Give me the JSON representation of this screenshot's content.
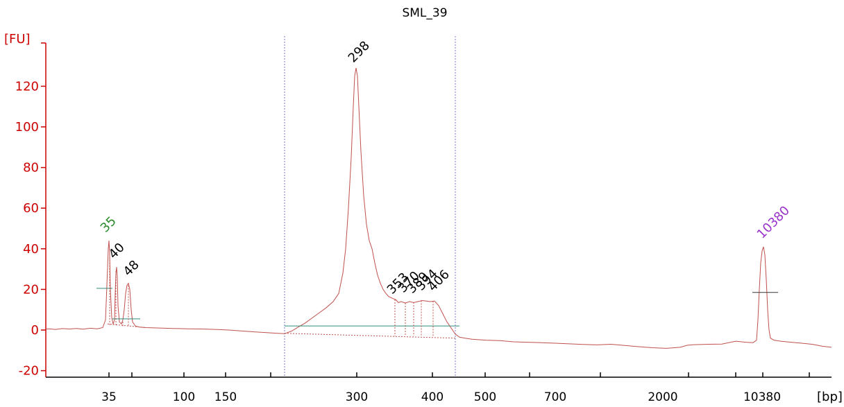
{
  "chart_data": {
    "type": "line",
    "title": "SML_39",
    "ylabel": "[FU]",
    "xlabel": "[bp]",
    "ylim": [
      -22,
      142
    ],
    "yticks": [
      -20,
      0,
      20,
      40,
      60,
      80,
      100,
      120
    ],
    "xticks": [
      "35",
      "",
      "100",
      "150",
      "",
      "300",
      "400",
      "500",
      "700",
      "2000",
      "10380"
    ],
    "colors": {
      "trace": "#c0504d",
      "axis": "#cc0000",
      "baseline": "#2e8b7a",
      "window": "#7777cc",
      "lower_marker": "#2a8a2a",
      "upper_marker": "#9933cc",
      "peak_label": "#000000"
    },
    "peaks": [
      {
        "label": "35",
        "fu": 44,
        "color": "lower_marker"
      },
      {
        "label": "40",
        "fu": 31,
        "color": "peak_label"
      },
      {
        "label": "48",
        "fu": 23,
        "color": "peak_label"
      },
      {
        "label": "298",
        "fu": 129,
        "color": "peak_label"
      },
      {
        "label": "353",
        "fu": 15,
        "color": "peak_label"
      },
      {
        "label": "370",
        "fu": 14,
        "color": "peak_label"
      },
      {
        "label": "389",
        "fu": 14,
        "color": "peak_label"
      },
      {
        "label": "394",
        "fu": 14,
        "color": "peak_label"
      },
      {
        "label": "406",
        "fu": 14,
        "color": "peak_label"
      },
      {
        "label": "10380",
        "fu": 41,
        "color": "upper_marker"
      }
    ]
  }
}
